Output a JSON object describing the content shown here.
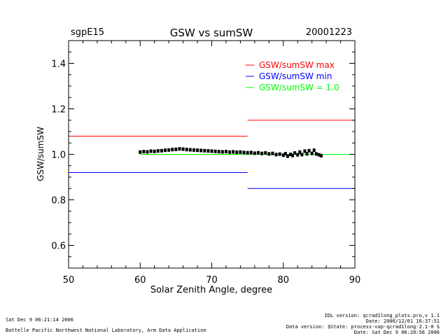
{
  "chart_data": {
    "type": "scatter",
    "site": "sgpE15",
    "title": "GSW vs sumSW",
    "date": "20001223",
    "xlabel": "Solar Zenith Angle, degree",
    "ylabel": "GSW/sumSW",
    "xlim": [
      50,
      90
    ],
    "ylim": [
      0.5,
      1.5
    ],
    "xticks": [
      50,
      60,
      70,
      80,
      90
    ],
    "yticks": [
      0.6,
      0.8,
      1.0,
      1.2,
      1.4
    ],
    "ytick_labels": [
      "0.6",
      "0.8",
      "1.0",
      "1.2",
      "1.4"
    ],
    "grid": false,
    "legend_position": "top-right",
    "legend": [
      {
        "label": "GSW/sumSW max",
        "color": "#ff0000"
      },
      {
        "label": "GSW/sumSW min",
        "color": "#0000ff"
      },
      {
        "label": "GSW/sumSW = 1.0",
        "color": "#00ff00"
      }
    ],
    "reference_lines": {
      "max": [
        {
          "x": [
            50,
            75
          ],
          "y": 1.08
        },
        {
          "x": [
            75,
            90
          ],
          "y": 1.15
        }
      ],
      "min": [
        {
          "x": [
            50,
            75
          ],
          "y": 0.92
        },
        {
          "x": [
            75,
            90
          ],
          "y": 0.85
        }
      ],
      "unity": {
        "x": [
          60,
          90
        ],
        "y": 1.0
      }
    },
    "series": [
      {
        "points": [
          [
            60.0,
            1.01
          ],
          [
            60.5,
            1.012
          ],
          [
            61.0,
            1.011
          ],
          [
            61.5,
            1.014
          ],
          [
            62.0,
            1.013
          ],
          [
            62.5,
            1.015
          ],
          [
            63.0,
            1.016
          ],
          [
            63.5,
            1.018
          ],
          [
            64.0,
            1.019
          ],
          [
            64.5,
            1.021
          ],
          [
            65.0,
            1.022
          ],
          [
            65.5,
            1.024
          ],
          [
            66.0,
            1.023
          ],
          [
            66.5,
            1.021
          ],
          [
            67.0,
            1.02
          ],
          [
            67.5,
            1.019
          ],
          [
            68.0,
            1.018
          ],
          [
            68.5,
            1.017
          ],
          [
            69.0,
            1.016
          ],
          [
            69.5,
            1.015
          ],
          [
            70.0,
            1.014
          ],
          [
            70.5,
            1.013
          ],
          [
            71.0,
            1.012
          ],
          [
            71.5,
            1.011
          ],
          [
            72.0,
            1.012
          ],
          [
            72.5,
            1.01
          ],
          [
            73.0,
            1.011
          ],
          [
            73.5,
            1.009
          ],
          [
            74.0,
            1.01
          ],
          [
            74.5,
            1.008
          ],
          [
            75.0,
            1.007
          ],
          [
            75.5,
            1.008
          ],
          [
            76.0,
            1.005
          ],
          [
            76.5,
            1.007
          ],
          [
            77.0,
            1.004
          ],
          [
            77.5,
            1.006
          ],
          [
            78.0,
            1.002
          ],
          [
            78.5,
            1.004
          ],
          [
            79.0,
            0.999
          ],
          [
            79.5,
            1.001
          ],
          [
            80.0,
            0.996
          ],
          [
            80.3,
            1.003
          ],
          [
            80.6,
            0.992
          ],
          [
            81.0,
            1.0
          ],
          [
            81.3,
            0.995
          ],
          [
            81.6,
            1.006
          ],
          [
            82.0,
            0.998
          ],
          [
            82.3,
            1.01
          ],
          [
            82.6,
            0.999
          ],
          [
            83.0,
            1.014
          ],
          [
            83.3,
            1.002
          ],
          [
            83.6,
            1.016
          ],
          [
            84.0,
            1.004
          ],
          [
            84.3,
            1.018
          ],
          [
            84.6,
            1.002
          ],
          [
            85.0,
            0.998
          ],
          [
            85.3,
            0.994
          ]
        ]
      }
    ]
  },
  "footer": {
    "left_time": "Sat Dec  9 06:21:14 2006",
    "left_org": "Battelle Pacific Northwest National Laboratory, Arm Data Application",
    "right_lines": [
      "IDL version: qcrad1long_plots.pro,v 1.1",
      "Date: 2006/12/01 16:37:51",
      "Data version: $State: process-vap-qcrad1long-2.1-0 $",
      "Date: Sat Dec  9 06:20:56 2006"
    ]
  }
}
